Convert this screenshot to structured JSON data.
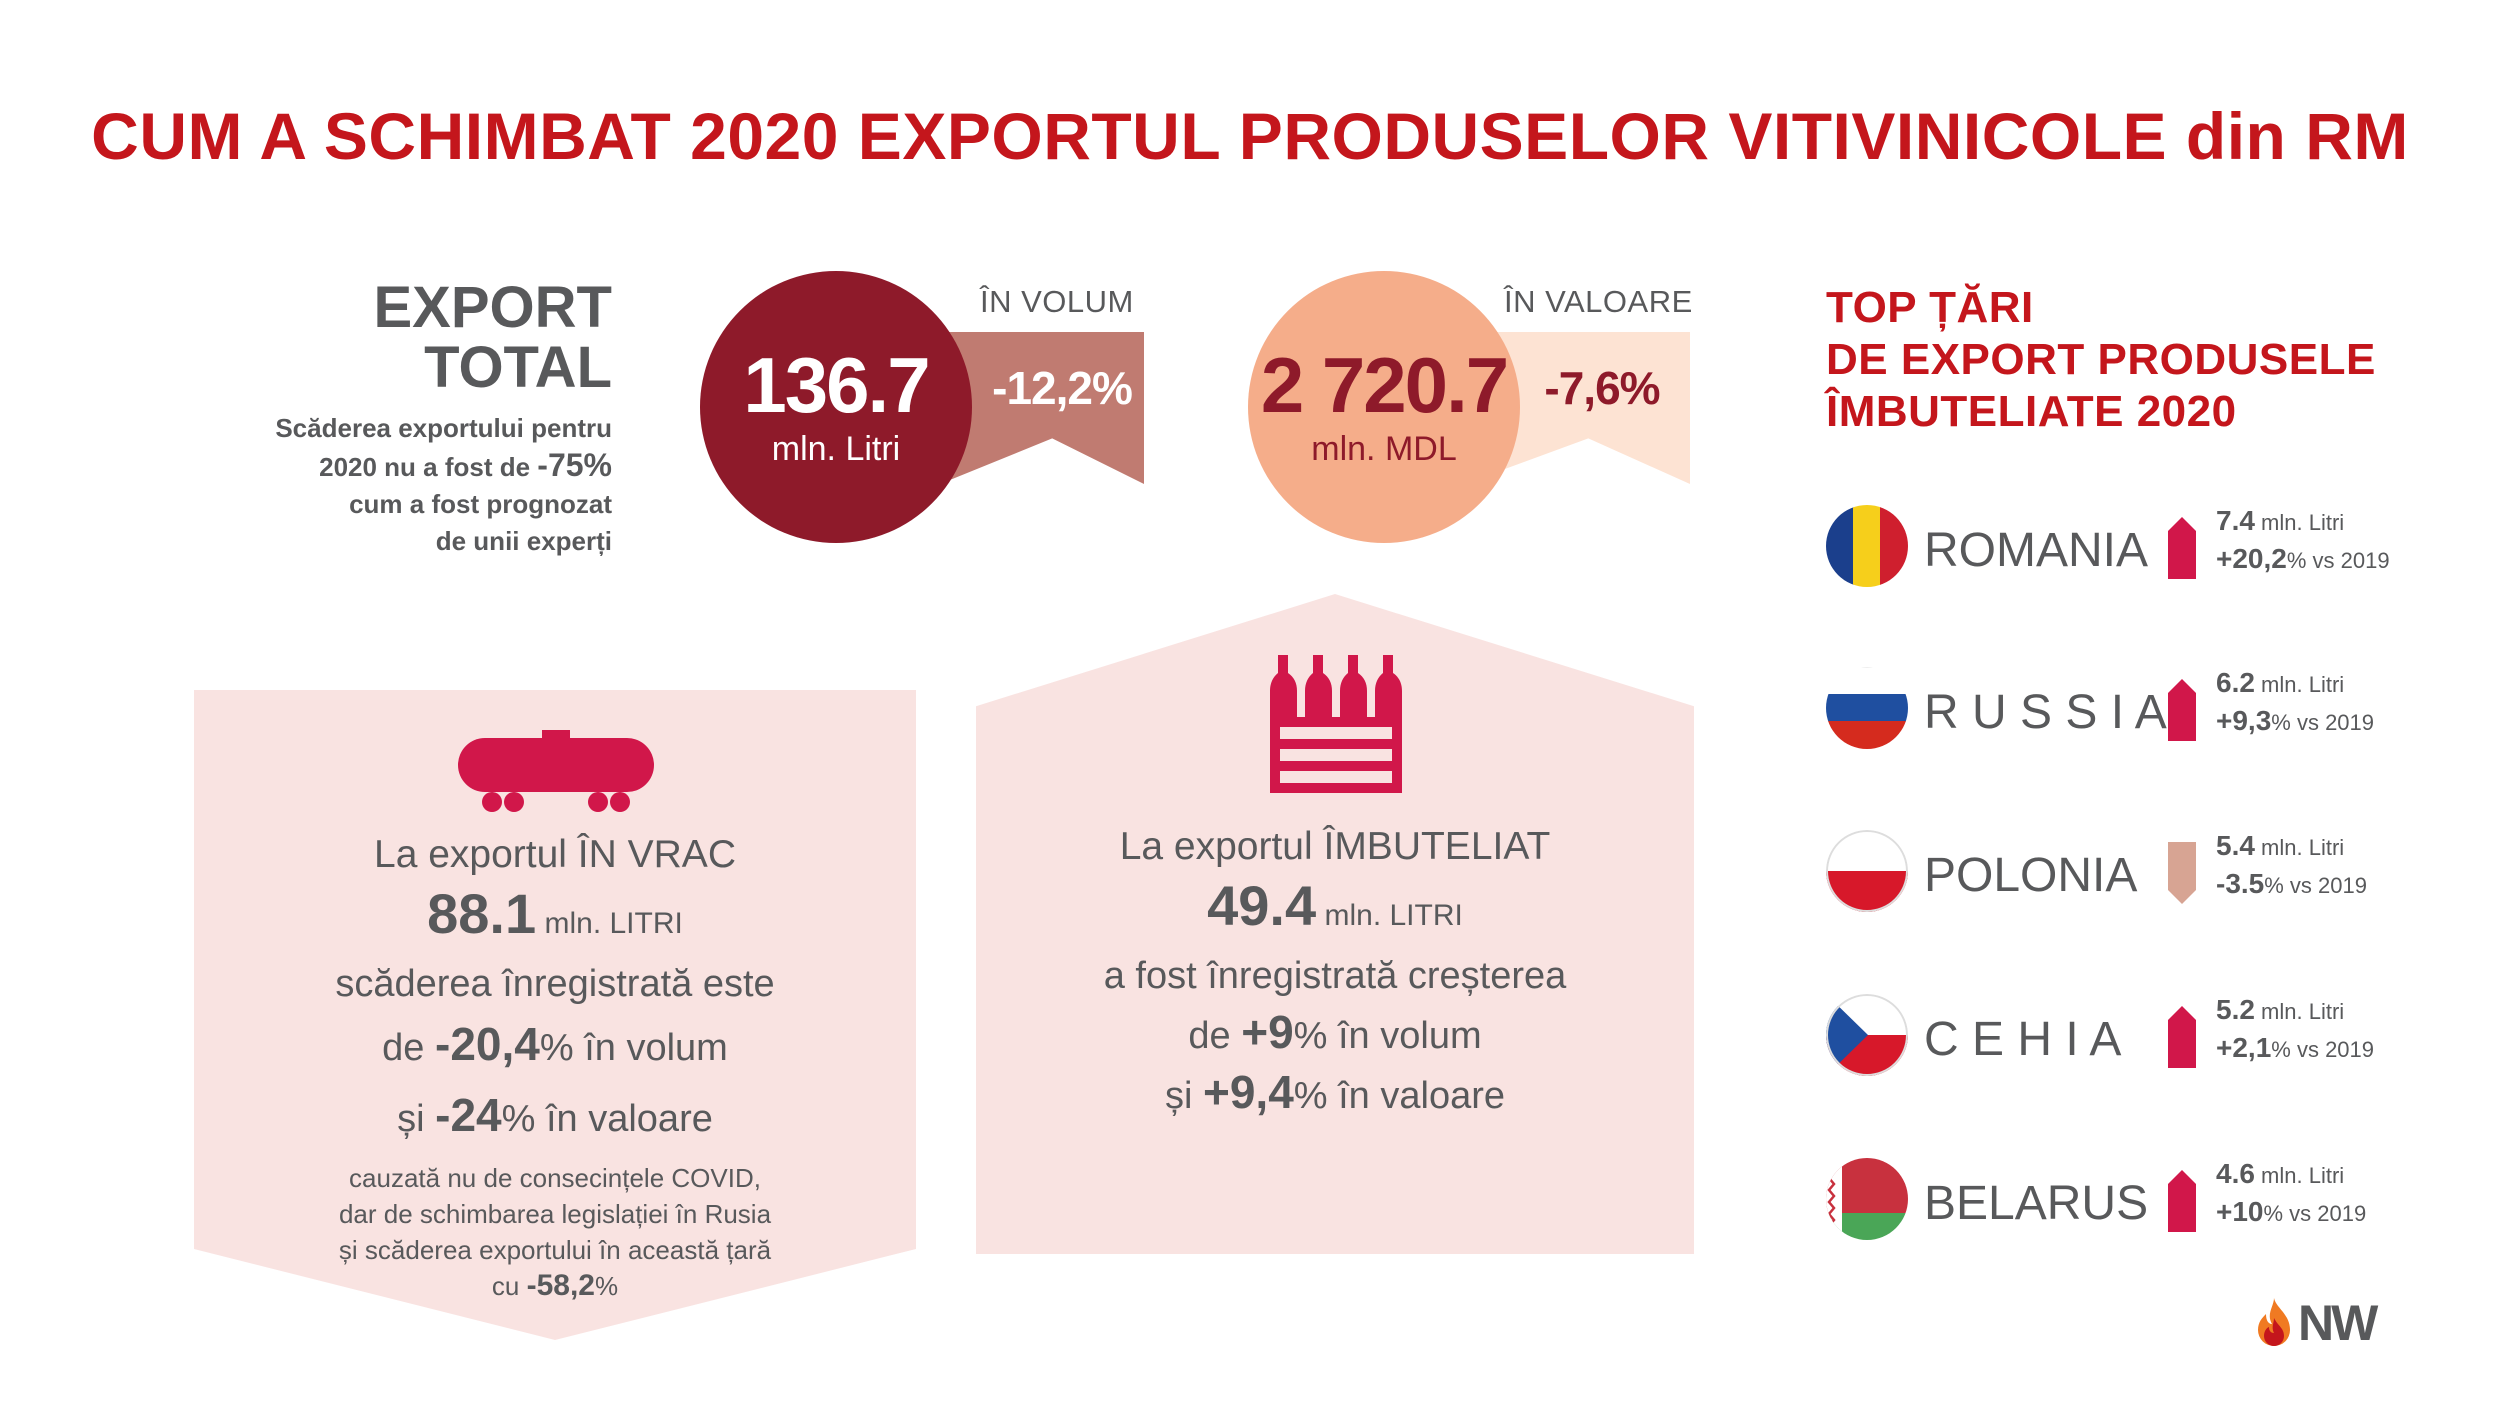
{
  "title": "CUM A SCHIMBAT 2020 EXPORTUL PRODUSELOR VITIVINICOLE din RM",
  "export_total": {
    "title_line1": "EXPORT",
    "title_line2": "TOTAL",
    "note_line1": "Scăderea exportului pentru",
    "note_line2_pre": "2020 nu a fost de ",
    "note_line2_val": "-75%",
    "note_line3": "cum a fost prognozat",
    "note_line4": "de unii experți"
  },
  "volume": {
    "label": "ÎN VOLUM",
    "value": "136.7",
    "unit": "mln. Litri",
    "change": "-12,2%",
    "circle_color": "#8e1a2a",
    "flag_color": "#c07b71"
  },
  "valoare": {
    "label": "ÎN VALOARE",
    "value": "2 720.7",
    "unit": "mln. MDL",
    "change": "-7,6%",
    "circle_color": "#f5ad8a",
    "flag_color": "#fde3d3",
    "text_color": "#8e1a2a"
  },
  "vrac": {
    "icon": "tank-truck-icon",
    "line1": "La exportul ÎN VRAC",
    "amount": "88.1",
    "amount_unit": " mln. LITRI",
    "line3": "scăderea înregistrată este",
    "line4_pre": "de ",
    "line4_val": "-20,4",
    "line4_post": "% în volum",
    "line5_pre": "și ",
    "line5_val": "-24",
    "line5_post": "% în valoare",
    "note1": "cauzată nu de consecințele COVID,",
    "note2": "dar de schimbarea legislației în Rusia",
    "note3": "și scăderea exportului în această țară",
    "note4_pre": "cu ",
    "note4_val": "-58,2",
    "note4_post": "%"
  },
  "imbuteliat": {
    "icon": "wine-bottles-crate-icon",
    "line1": "La exportul ÎMBUTELIAT",
    "amount": "49.4",
    "amount_unit": " mln. LITRI",
    "line3": "a fost înregistrată creșterea",
    "line4_pre": "de ",
    "line4_val": "+9",
    "line4_post": "% în volum",
    "line5_pre": "și ",
    "line5_val": "+9,4",
    "line5_post": "% în valoare"
  },
  "top": {
    "title_line1": "TOP ȚĂRI",
    "title_line2": "DE EXPORT PRODUSELE",
    "title_line3": "ÎMBUTELIATE 2020",
    "countries": [
      {
        "name": "ROMANIA",
        "amount": "7.4",
        "unit": " mln. Litri",
        "change": "+20,2",
        "vs": "% vs 2019",
        "trend": "up",
        "flag": "romania-flag-icon"
      },
      {
        "name": "R U S S I A",
        "amount": "6.2",
        "unit": " mln. Litri",
        "change": "+9,3",
        "vs": "% vs 2019",
        "trend": "up",
        "flag": "russia-flag-icon"
      },
      {
        "name": "POLONIA",
        "amount": "5.4",
        "unit": " mln. Litri",
        "change": "-3.5",
        "vs": "% vs 2019",
        "trend": "down",
        "flag": "poland-flag-icon"
      },
      {
        "name": "C E H I A",
        "amount": "5.2",
        "unit": " mln. Litri",
        "change": "+2,1",
        "vs": "% vs 2019",
        "trend": "up",
        "flag": "czech-flag-icon"
      },
      {
        "name": "BELARUS",
        "amount": "4.6",
        "unit": " mln. Litri",
        "change": "+10",
        "vs": "% vs 2019",
        "trend": "up",
        "flag": "belarus-flag-icon"
      }
    ]
  },
  "logo": {
    "text": "NW",
    "icon": "nw-flame-logo-icon"
  },
  "colors": {
    "accent_red": "#c4161c",
    "crimson": "#d1174a",
    "panel_pink": "#f9e3e1",
    "down_arrow": "#d7a493",
    "text_gray": "#58595b"
  }
}
